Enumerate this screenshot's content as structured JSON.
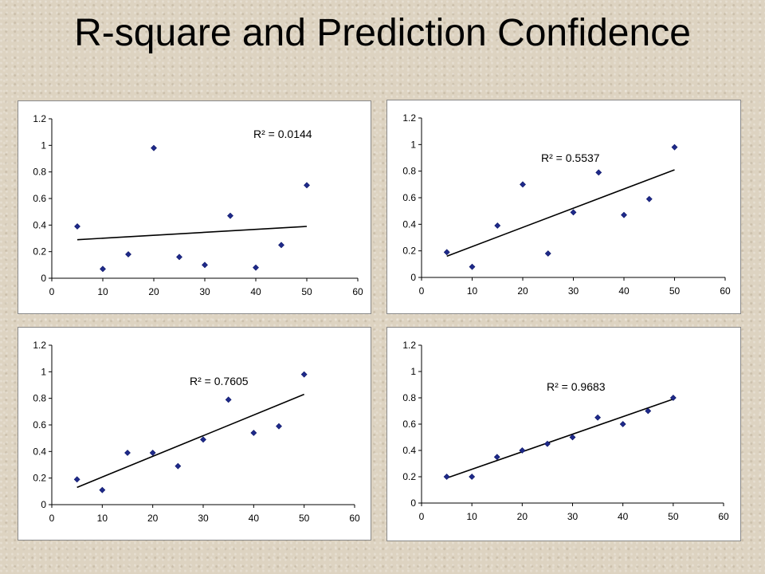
{
  "slide": {
    "title": "R-square and Prediction Confidence"
  },
  "chart_data": [
    {
      "type": "scatter",
      "x": [
        5,
        10,
        15,
        20,
        25,
        30,
        35,
        40,
        45,
        50
      ],
      "y": [
        0.39,
        0.07,
        0.18,
        0.98,
        0.16,
        0.1,
        0.47,
        0.08,
        0.25,
        0.7
      ],
      "trendline": {
        "type": "linear",
        "y_start": 0.29,
        "y_end": 0.39
      },
      "annotation": "R² = 0.0144",
      "xlim": [
        0,
        60
      ],
      "ylim": [
        0,
        1.2
      ],
      "xticks": [
        "0",
        "10",
        "20",
        "30",
        "40",
        "50",
        "60"
      ],
      "yticks": [
        "0",
        "0.2",
        "0.4",
        "0.6",
        "0.8",
        "1",
        "1.2"
      ],
      "marker_color": "#1f2a8a",
      "grid": false
    },
    {
      "type": "scatter",
      "x": [
        5,
        10,
        15,
        20,
        25,
        30,
        35,
        40,
        45,
        50
      ],
      "y": [
        0.19,
        0.08,
        0.39,
        0.7,
        0.18,
        0.49,
        0.79,
        0.47,
        0.59,
        0.98
      ],
      "trendline": {
        "type": "linear",
        "y_start": 0.16,
        "y_end": 0.81
      },
      "annotation": "R² = 0.5537",
      "xlim": [
        0,
        60
      ],
      "ylim": [
        0,
        1.2
      ],
      "xticks": [
        "0",
        "10",
        "20",
        "30",
        "40",
        "50",
        "60"
      ],
      "yticks": [
        "0",
        "0.2",
        "0.4",
        "0.6",
        "0.8",
        "1",
        "1.2"
      ],
      "marker_color": "#1f2a8a",
      "grid": false
    },
    {
      "type": "scatter",
      "x": [
        5,
        10,
        15,
        20,
        25,
        30,
        35,
        40,
        45,
        50
      ],
      "y": [
        0.19,
        0.11,
        0.39,
        0.39,
        0.29,
        0.49,
        0.79,
        0.54,
        0.59,
        0.98
      ],
      "trendline": {
        "type": "linear",
        "y_start": 0.13,
        "y_end": 0.83
      },
      "annotation": "R² = 0.7605",
      "xlim": [
        0,
        60
      ],
      "ylim": [
        0,
        1.2
      ],
      "xticks": [
        "0",
        "10",
        "20",
        "30",
        "40",
        "50",
        "60"
      ],
      "yticks": [
        "0",
        "0.2",
        "0.4",
        "0.6",
        "0.8",
        "1",
        "1.2"
      ],
      "marker_color": "#1f2a8a",
      "grid": false
    },
    {
      "type": "scatter",
      "x": [
        5,
        10,
        15,
        20,
        25,
        30,
        35,
        40,
        45,
        50
      ],
      "y": [
        0.2,
        0.2,
        0.35,
        0.4,
        0.45,
        0.5,
        0.65,
        0.6,
        0.7,
        0.8
      ],
      "trendline": {
        "type": "linear",
        "y_start": 0.19,
        "y_end": 0.79
      },
      "annotation": "R² = 0.9683",
      "xlim": [
        0,
        60
      ],
      "ylim": [
        0,
        1.2
      ],
      "xticks": [
        "0",
        "10",
        "20",
        "30",
        "40",
        "50",
        "60"
      ],
      "yticks": [
        "0",
        "0.2",
        "0.4",
        "0.6",
        "0.8",
        "1",
        "1.2"
      ],
      "marker_color": "#1f2a8a",
      "grid": false
    }
  ]
}
